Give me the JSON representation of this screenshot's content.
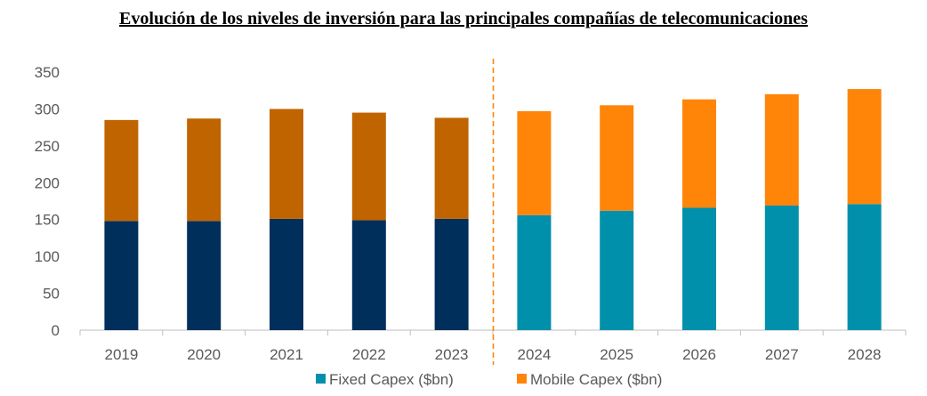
{
  "chart_data": {
    "type": "bar",
    "stacked": true,
    "title": "Evolución de los niveles de inversión para las principales compañías de telecomunicaciones",
    "categories": [
      "2019",
      "2020",
      "2021",
      "2022",
      "2023",
      "2024",
      "2025",
      "2026",
      "2027",
      "2028"
    ],
    "series": [
      {
        "name": "Fixed Capex ($bn)",
        "values": [
          148,
          148,
          151,
          149,
          151,
          156,
          162,
          166,
          169,
          171
        ],
        "colors": [
          "#002F5C",
          "#002F5C",
          "#002F5C",
          "#002F5C",
          "#002F5C",
          "#0090AC",
          "#0090AC",
          "#0090AC",
          "#0090AC",
          "#0090AC"
        ]
      },
      {
        "name": "Mobile Capex ($bn)",
        "values": [
          137,
          139,
          149,
          146,
          137,
          141,
          143,
          147,
          151,
          156
        ],
        "colors": [
          "#C06400",
          "#C06400",
          "#C06400",
          "#C06400",
          "#C06400",
          "#FF8509",
          "#FF8509",
          "#FF8509",
          "#FF8509",
          "#FF8509"
        ]
      }
    ],
    "yticks": [
      "0",
      "50",
      "100",
      "150",
      "200",
      "250",
      "300",
      "350"
    ],
    "ylim": [
      0,
      350
    ],
    "forecast_divider_after": "2023",
    "divider_color": "#FF8509",
    "legend_position": "bottom",
    "grid": false
  }
}
